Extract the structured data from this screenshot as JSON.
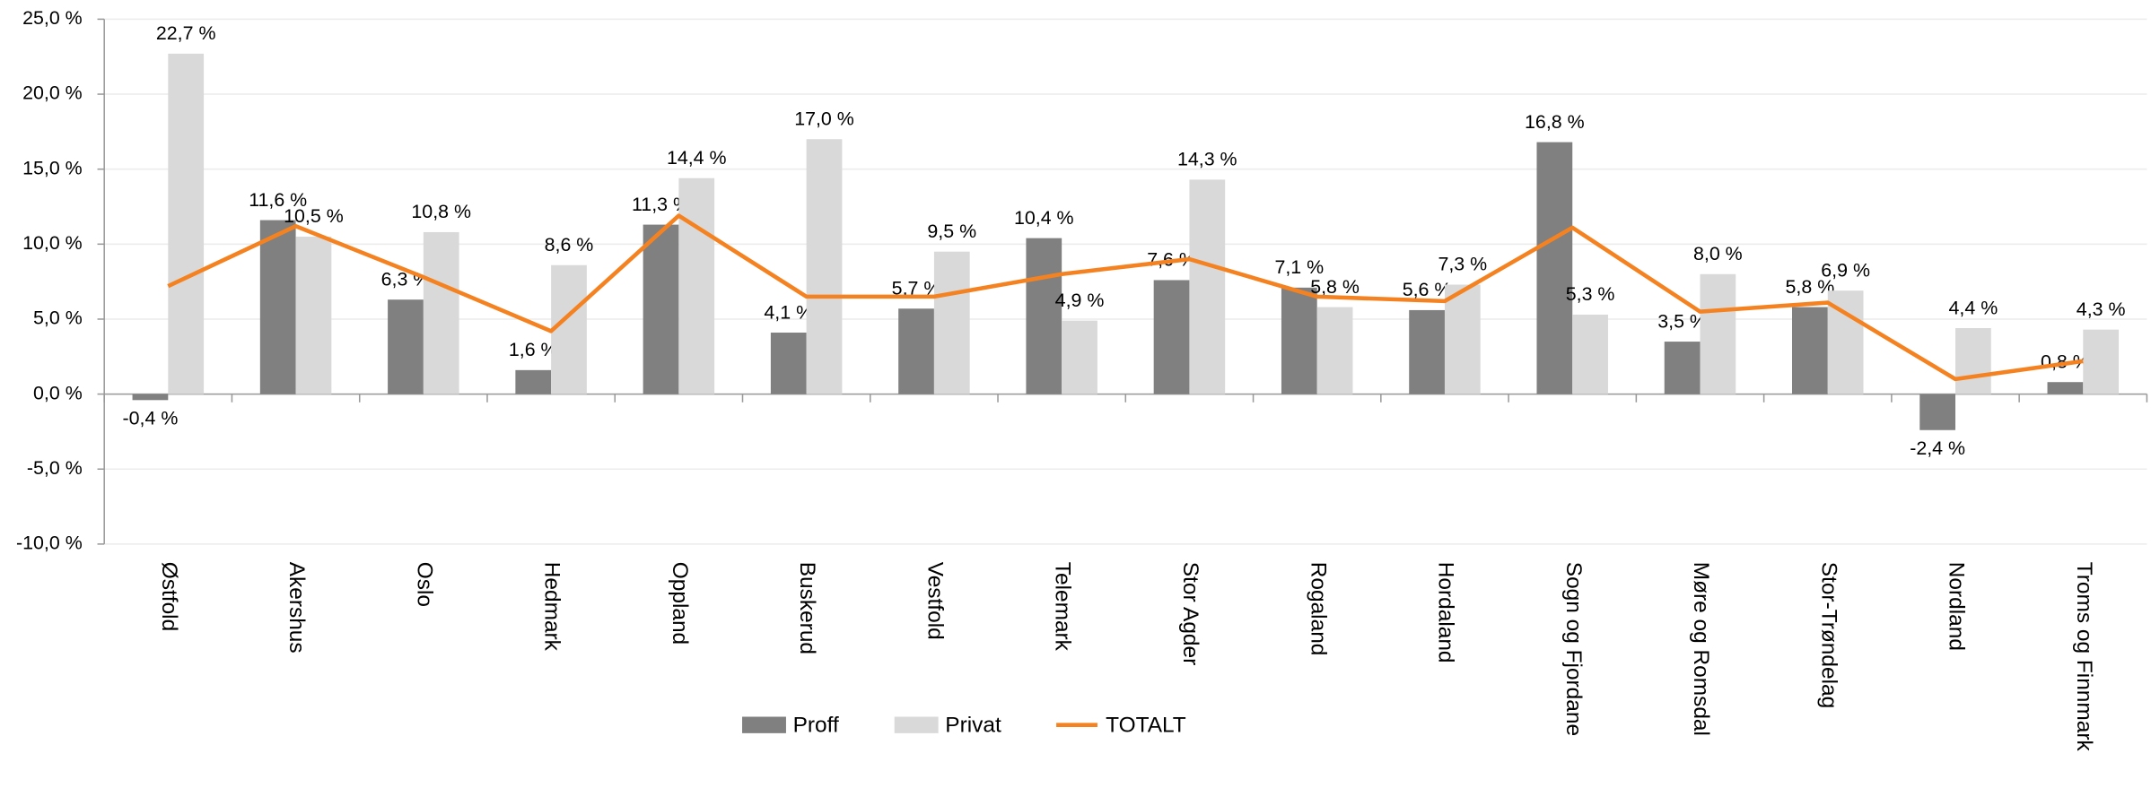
{
  "chart_data": {
    "type": "bar",
    "categories": [
      "Østfold",
      "Akershus",
      "Oslo",
      "Hedmark",
      "Oppland",
      "Buskerud",
      "Vestfold",
      "Telemark",
      "Stor Agder",
      "Rogaland",
      "Hordaland",
      "Sogn og Fjordane",
      "Møre og Romsdal",
      "Stor-Trøndelag",
      "Nordland",
      "Troms og Finnmark"
    ],
    "series": [
      {
        "name": "Proff",
        "color": "#808080",
        "type": "bar",
        "values": [
          -0.4,
          11.6,
          6.3,
          1.6,
          11.3,
          4.1,
          5.7,
          10.4,
          7.6,
          7.1,
          5.6,
          16.8,
          3.5,
          5.8,
          -2.4,
          0.8
        ],
        "value_labels": [
          "-0,4 %",
          "11,6 %",
          "6,3 %",
          "1,6 %",
          "11,3 %",
          "4,1 %",
          "5,7 %",
          "10,4 %",
          "7,6 %",
          "7,1 %",
          "5,6 %",
          "16,8 %",
          "3,5 %",
          "5,8 %",
          "-2,4 %",
          "0,8 %"
        ]
      },
      {
        "name": "Privat",
        "color": "#d9d9d9",
        "type": "bar",
        "values": [
          22.7,
          10.5,
          10.8,
          8.6,
          14.4,
          17.0,
          9.5,
          4.9,
          14.3,
          5.8,
          7.3,
          5.3,
          8.0,
          6.9,
          4.4,
          4.3
        ],
        "value_labels": [
          "22,7 %",
          "10,5 %",
          "10,8 %",
          "8,6 %",
          "14,4 %",
          "17,0 %",
          "9,5 %",
          "4,9 %",
          "14,3 %",
          "5,8 %",
          "7,3 %",
          "5,3 %",
          "8,0 %",
          "6,9 %",
          "4,4 %",
          "4,3 %"
        ]
      },
      {
        "name": "TOTALT",
        "color": "#f58220",
        "type": "line",
        "values": [
          7.2,
          11.2,
          7.8,
          4.2,
          11.9,
          6.5,
          6.5,
          8.0,
          9.0,
          6.5,
          6.2,
          11.1,
          5.5,
          6.1,
          1.0,
          2.2
        ]
      }
    ],
    "ylim": [
      -10,
      25
    ],
    "yticks": [
      {
        "value": -10,
        "label": "-10,0 %"
      },
      {
        "value": -5,
        "label": "-5,0 %"
      },
      {
        "value": 0,
        "label": "0,0 %"
      },
      {
        "value": 5,
        "label": "5,0 %"
      },
      {
        "value": 10,
        "label": "10,0 %"
      },
      {
        "value": 15,
        "label": "15,0 %"
      },
      {
        "value": 20,
        "label": "20,0 %"
      },
      {
        "value": 25,
        "label": "25,0 %"
      }
    ],
    "grid": true,
    "legend": "bottom"
  }
}
